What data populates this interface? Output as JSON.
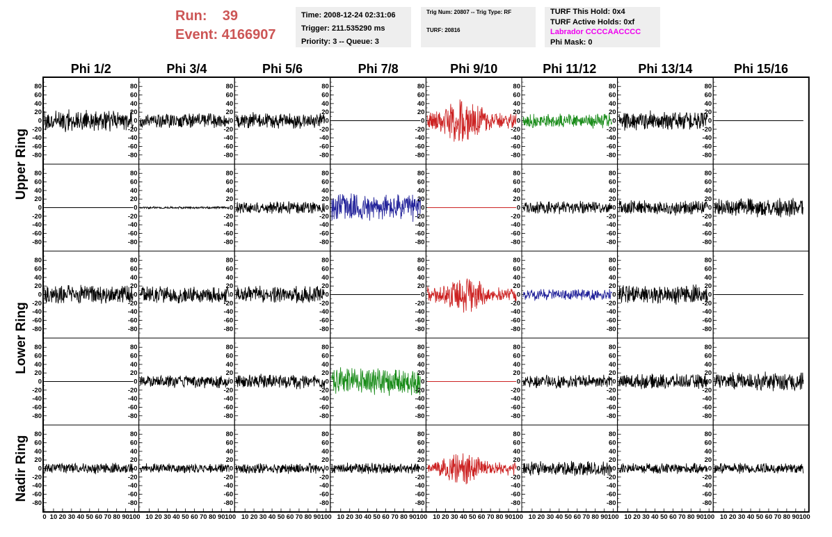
{
  "header": {
    "run_label": "Run:",
    "run_value": "39",
    "event_label": "Event:",
    "event_value": "4166907",
    "run_color": "#cc5555"
  },
  "info_time": {
    "time": "Time: 2008-12-24 02:31:06",
    "trigger": "Trigger: 211.535290 ms",
    "priority": "Priority: 3 -- Queue: 3"
  },
  "info_trig": {
    "trig": "Trig Num: 20807 -- Trig Type: RF",
    "turf": "TURF: 20816"
  },
  "info_turf": {
    "hold": "TURF This Hold: 0x4",
    "active": "TURF Active Holds: 0xf",
    "labrador": "Labrador CCCCAACCCC",
    "labrador_color": "#ee00ee",
    "phi_mask": "Phi Mask: 0"
  },
  "chart_data": {
    "type": "line",
    "columns": [
      "Phi 1/2",
      "Phi 3/4",
      "Phi 5/6",
      "Phi 7/8",
      "Phi 9/10",
      "Phi 11/12",
      "Phi 13/14",
      "Phi 15/16"
    ],
    "ring_labels": [
      {
        "text": "Upper Ring",
        "rows": [
          0,
          1
        ]
      },
      {
        "text": "Lower Ring",
        "rows": [
          2,
          3
        ]
      },
      {
        "text": "Nadir Ring",
        "rows": [
          4,
          4
        ]
      }
    ],
    "rows": 5,
    "yticks": [
      "80",
      "60",
      "40",
      "20",
      "0",
      "-20",
      "-40",
      "-60",
      "-80"
    ],
    "ylim": [
      -95,
      95
    ],
    "xlim": [
      0,
      100
    ],
    "xticks": [
      "0",
      "10",
      "20",
      "30",
      "40",
      "50",
      "60",
      "70",
      "80",
      "90",
      "100"
    ],
    "grid": false,
    "trace_colors": {
      "k": "#000000",
      "r": "#cc2222",
      "g": "#1a8c1a",
      "b": "#22229a"
    },
    "traces": [
      [
        {
          "c": "k",
          "a": 20,
          "s": 11
        },
        {
          "c": "k",
          "a": 14,
          "s": 12
        },
        {
          "c": "k",
          "a": 16,
          "s": 13
        },
        {
          "c": "k",
          "a": 0,
          "s": 14
        },
        {
          "c": "r",
          "a": 32,
          "s": 15,
          "burst": true
        },
        {
          "c": "g",
          "a": 14,
          "s": 16
        },
        {
          "c": "k",
          "a": 18,
          "s": 17
        },
        {
          "c": "k",
          "a": 0,
          "s": 18
        }
      ],
      [
        {
          "c": "k",
          "a": 0,
          "s": 21
        },
        {
          "c": "k",
          "a": 2,
          "s": 22
        },
        {
          "c": "k",
          "a": 12,
          "s": 23
        },
        {
          "c": "b",
          "a": 26,
          "s": 24
        },
        {
          "c": "r",
          "a": 0,
          "s": 25
        },
        {
          "c": "k",
          "a": 12,
          "s": 26
        },
        {
          "c": "k",
          "a": 14,
          "s": 27
        },
        {
          "c": "k",
          "a": 18,
          "s": 28
        }
      ],
      [
        {
          "c": "k",
          "a": 18,
          "s": 31
        },
        {
          "c": "k",
          "a": 16,
          "s": 32
        },
        {
          "c": "k",
          "a": 16,
          "s": 33
        },
        {
          "c": "k",
          "a": 0,
          "s": 34
        },
        {
          "c": "r",
          "a": 26,
          "s": 35,
          "burst": true
        },
        {
          "c": "b",
          "a": 10,
          "s": 36
        },
        {
          "c": "k",
          "a": 18,
          "s": 37
        },
        {
          "c": "k",
          "a": 0,
          "s": 38
        }
      ],
      [
        {
          "c": "k",
          "a": 0,
          "s": 41
        },
        {
          "c": "k",
          "a": 12,
          "s": 42
        },
        {
          "c": "k",
          "a": 14,
          "s": 43
        },
        {
          "c": "g",
          "a": 26,
          "s": 44
        },
        {
          "c": "r",
          "a": 0,
          "s": 45
        },
        {
          "c": "k",
          "a": 12,
          "s": 46
        },
        {
          "c": "k",
          "a": 14,
          "s": 47
        },
        {
          "c": "k",
          "a": 18,
          "s": 48
        }
      ],
      [
        {
          "c": "k",
          "a": 10,
          "s": 51
        },
        {
          "c": "k",
          "a": 9,
          "s": 52
        },
        {
          "c": "k",
          "a": 10,
          "s": 53
        },
        {
          "c": "k",
          "a": 10,
          "s": 54
        },
        {
          "c": "r",
          "a": 24,
          "s": 55,
          "burst": true
        },
        {
          "c": "k",
          "a": 14,
          "s": 56
        },
        {
          "c": "k",
          "a": 10,
          "s": 57
        },
        {
          "c": "k",
          "a": 10,
          "s": 58
        }
      ]
    ]
  }
}
